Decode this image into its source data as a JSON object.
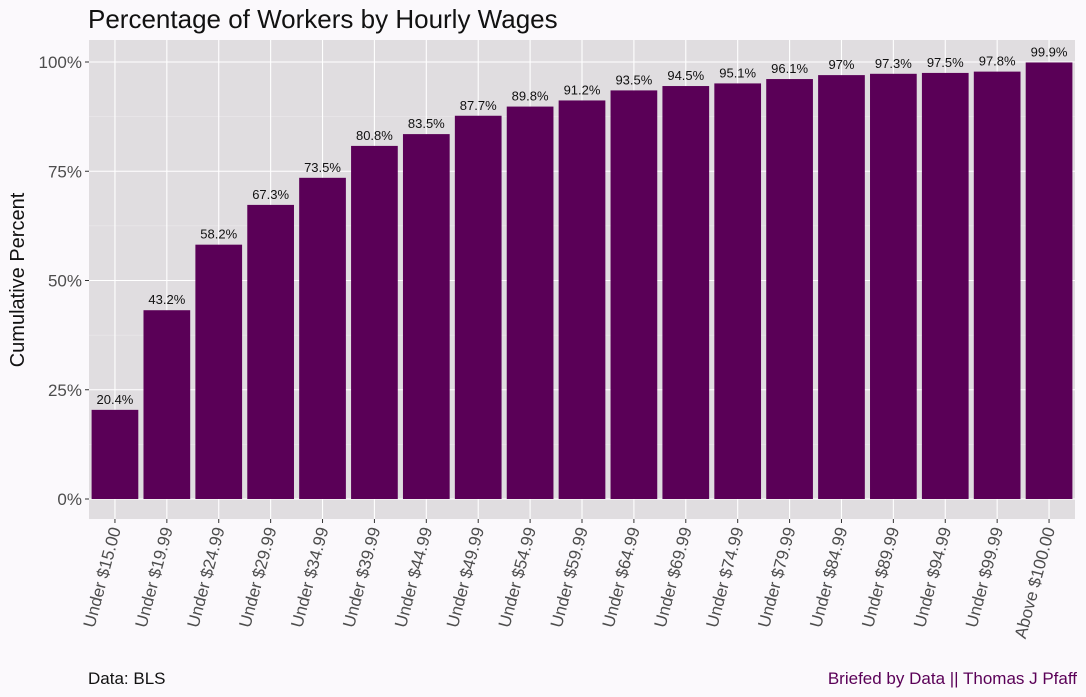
{
  "chart_data": {
    "type": "bar",
    "title": "Percentage of Workers by Hourly Wages",
    "ylabel": "Cumulative Percent",
    "xlabel": "",
    "ylim": [
      0,
      100
    ],
    "y_ticks": [
      "0%",
      "25%",
      "50%",
      "75%",
      "100%"
    ],
    "grid": true,
    "categories": [
      "Under $15.00",
      "Under $19.99",
      "Under $24.99",
      "Under $29.99",
      "Under $34.99",
      "Under $39.99",
      "Under $44.99",
      "Under $49.99",
      "Under $54.99",
      "Under $59.99",
      "Under $64.99",
      "Under $69.99",
      "Under $74.99",
      "Under $79.99",
      "Under $84.99",
      "Under $89.99",
      "Under $94.99",
      "Under $99.99",
      "Above  $100.00"
    ],
    "values": [
      20.4,
      43.2,
      58.2,
      67.3,
      73.5,
      80.8,
      83.5,
      87.7,
      89.8,
      91.2,
      93.5,
      94.5,
      95.1,
      96.1,
      97,
      97.3,
      97.5,
      97.8,
      99.9
    ],
    "data_labels": [
      "20.4%",
      "43.2%",
      "58.2%",
      "67.3%",
      "73.5%",
      "80.8%",
      "83.5%",
      "87.7%",
      "89.8%",
      "91.2%",
      "93.5%",
      "94.5%",
      "95.1%",
      "96.1%",
      "97%",
      "97.3%",
      "97.5%",
      "97.8%",
      "99.9%"
    ],
    "bar_color": "#5a0057",
    "panel_color": "#e0dde0"
  },
  "caption": {
    "source": "Data: BLS",
    "credit": "Briefed by Data || Thomas J Pfaff",
    "credit_color": "#5a0057"
  }
}
